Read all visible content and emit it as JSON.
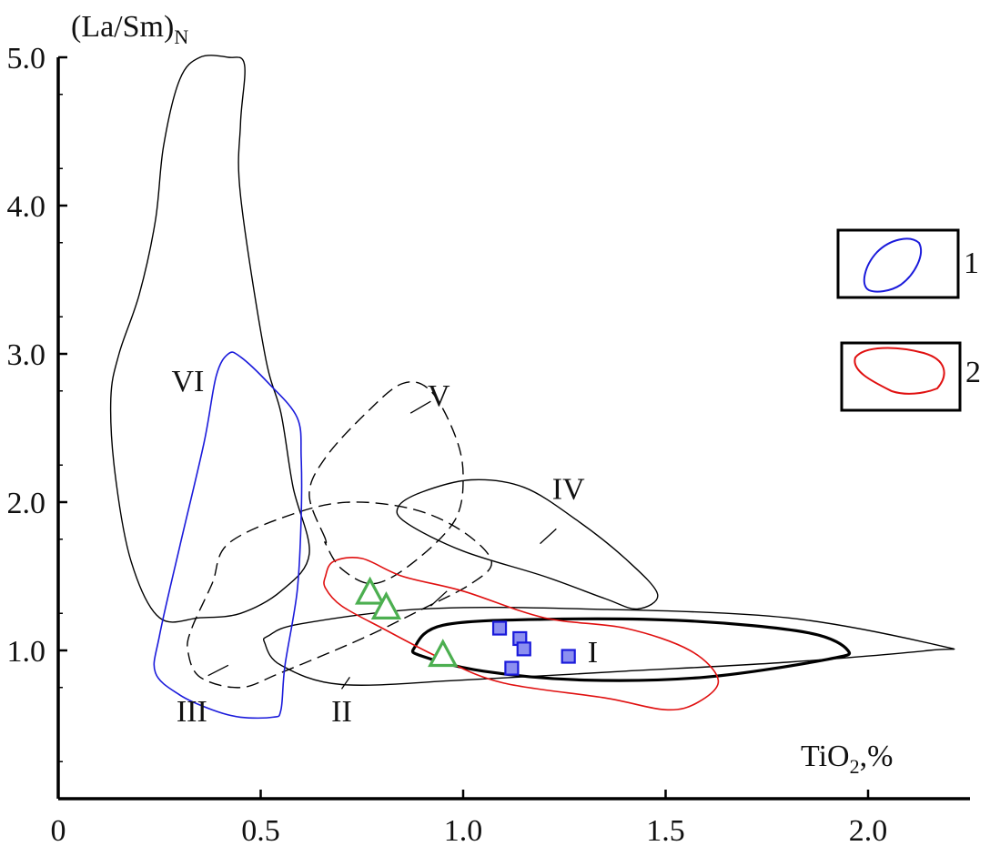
{
  "chart_data": {
    "type": "scatter",
    "title": "",
    "xlabel": "TiO",
    "xlabel_sub": "2",
    "xlabel_unit": ",%",
    "ylabel": "(La/Sm)",
    "ylabel_sub": "N",
    "xlim": [
      0,
      2.25
    ],
    "ylim": [
      0,
      5.0
    ],
    "x_ticks": [
      {
        "v": 0,
        "t": "0"
      },
      {
        "v": 0.5,
        "t": "0.5"
      },
      {
        "v": 1.0,
        "t": "1.0"
      },
      {
        "v": 1.5,
        "t": "1.5"
      },
      {
        "v": 2.0,
        "t": "2.0"
      }
    ],
    "y_ticks": [
      {
        "v": 1.0,
        "t": "1.0"
      },
      {
        "v": 2.0,
        "t": "2.0"
      },
      {
        "v": 3.0,
        "t": "3.0"
      },
      {
        "v": 4.0,
        "t": "4.0"
      },
      {
        "v": 5.0,
        "t": "5.0"
      }
    ],
    "grid": false,
    "colors": {
      "axis": "#000000",
      "field_black": "#000000",
      "field_blue": "#1a1adb",
      "field_red": "#e01010",
      "triangle": "#4caf50",
      "square_fill": "#8c8ff0",
      "square_stroke": "#1a1adb"
    },
    "fields": [
      {
        "label": "I",
        "style": "bold",
        "color": "#000000",
        "points": [
          [
            0.88,
            1.02
          ],
          [
            0.95,
            1.17
          ],
          [
            1.2,
            1.21
          ],
          [
            1.55,
            1.2
          ],
          [
            1.85,
            1.12
          ],
          [
            1.95,
            1.0
          ],
          [
            1.9,
            0.94
          ],
          [
            1.6,
            0.82
          ],
          [
            1.3,
            0.8
          ],
          [
            1.05,
            0.86
          ],
          [
            0.9,
            0.96
          ]
        ]
      },
      {
        "label": "II",
        "style": "thin",
        "color": "#000000",
        "points": [
          [
            0.52,
            1.1
          ],
          [
            0.6,
            1.18
          ],
          [
            0.9,
            1.28
          ],
          [
            1.3,
            1.28
          ],
          [
            1.8,
            1.22
          ],
          [
            2.18,
            1.03
          ],
          [
            2.15,
            1.0
          ],
          [
            1.8,
            0.92
          ],
          [
            1.4,
            0.86
          ],
          [
            1.0,
            0.8
          ],
          [
            0.7,
            0.77
          ],
          [
            0.55,
            0.9
          ],
          [
            0.51,
            1.05
          ]
        ]
      },
      {
        "label": "III",
        "style": "dashed",
        "color": "#000000",
        "points": [
          [
            0.33,
            1.15
          ],
          [
            0.38,
            1.45
          ],
          [
            0.42,
            1.72
          ],
          [
            0.58,
            1.92
          ],
          [
            0.72,
            2.0
          ],
          [
            0.88,
            1.95
          ],
          [
            1.0,
            1.8
          ],
          [
            1.07,
            1.6
          ],
          [
            1.02,
            1.45
          ],
          [
            0.9,
            1.28
          ],
          [
            0.75,
            1.08
          ],
          [
            0.55,
            0.85
          ],
          [
            0.45,
            0.75
          ],
          [
            0.35,
            0.82
          ],
          [
            0.32,
            1.0
          ]
        ]
      },
      {
        "label": "IV",
        "style": "thin",
        "color": "#000000",
        "points": [
          [
            0.84,
            1.97
          ],
          [
            0.9,
            2.07
          ],
          [
            1.02,
            2.15
          ],
          [
            1.15,
            2.1
          ],
          [
            1.28,
            1.88
          ],
          [
            1.4,
            1.62
          ],
          [
            1.48,
            1.38
          ],
          [
            1.43,
            1.28
          ],
          [
            1.35,
            1.35
          ],
          [
            1.2,
            1.5
          ],
          [
            1.0,
            1.67
          ],
          [
            0.86,
            1.86
          ]
        ]
      },
      {
        "label": "V",
        "style": "dashed",
        "color": "#000000",
        "points": [
          [
            0.66,
            1.75
          ],
          [
            0.62,
            2.05
          ],
          [
            0.66,
            2.3
          ],
          [
            0.76,
            2.6
          ],
          [
            0.85,
            2.8
          ],
          [
            0.92,
            2.75
          ],
          [
            0.98,
            2.45
          ],
          [
            1.0,
            2.18
          ],
          [
            0.98,
            1.88
          ],
          [
            0.88,
            1.6
          ],
          [
            0.78,
            1.45
          ],
          [
            0.7,
            1.55
          ],
          [
            0.66,
            1.72
          ]
        ]
      },
      {
        "label": "VI",
        "style": "thin",
        "color": "#000000",
        "points": [
          [
            0.35,
            5.0
          ],
          [
            0.42,
            5.0
          ],
          [
            0.46,
            4.95
          ],
          [
            0.45,
            4.55
          ],
          [
            0.45,
            4.07
          ],
          [
            0.51,
            3.0
          ],
          [
            0.55,
            2.6
          ],
          [
            0.58,
            2.1
          ],
          [
            0.62,
            1.65
          ],
          [
            0.55,
            1.4
          ],
          [
            0.45,
            1.25
          ],
          [
            0.35,
            1.22
          ],
          [
            0.25,
            1.22
          ],
          [
            0.18,
            1.6
          ],
          [
            0.14,
            2.2
          ],
          [
            0.13,
            2.7
          ],
          [
            0.15,
            3.0
          ],
          [
            0.2,
            3.4
          ],
          [
            0.24,
            3.9
          ],
          [
            0.26,
            4.4
          ],
          [
            0.3,
            4.85
          ]
        ]
      },
      {
        "label": "",
        "style": "thin",
        "color": "#1a1adb",
        "points": [
          [
            0.42,
            3.0
          ],
          [
            0.45,
            2.98
          ],
          [
            0.52,
            2.8
          ],
          [
            0.59,
            2.57
          ],
          [
            0.6,
            2.3
          ],
          [
            0.6,
            1.9
          ],
          [
            0.59,
            1.4
          ],
          [
            0.56,
            0.9
          ],
          [
            0.55,
            0.6
          ],
          [
            0.53,
            0.55
          ],
          [
            0.45,
            0.55
          ],
          [
            0.38,
            0.6
          ],
          [
            0.3,
            0.7
          ],
          [
            0.24,
            0.85
          ],
          [
            0.25,
            1.1
          ],
          [
            0.3,
            1.7
          ],
          [
            0.36,
            2.4
          ],
          [
            0.39,
            2.85
          ]
        ]
      },
      {
        "label": "",
        "style": "thin",
        "color": "#e01010",
        "points": [
          [
            0.66,
            1.5
          ],
          [
            0.68,
            1.6
          ],
          [
            0.75,
            1.62
          ],
          [
            0.85,
            1.5
          ],
          [
            1.0,
            1.4
          ],
          [
            1.2,
            1.22
          ],
          [
            1.4,
            1.15
          ],
          [
            1.56,
            1.0
          ],
          [
            1.63,
            0.8
          ],
          [
            1.58,
            0.65
          ],
          [
            1.5,
            0.6
          ],
          [
            1.35,
            0.68
          ],
          [
            1.1,
            0.78
          ],
          [
            0.95,
            0.94
          ],
          [
            0.8,
            1.15
          ],
          [
            0.7,
            1.3
          ],
          [
            0.66,
            1.42
          ]
        ]
      }
    ],
    "field_labels": [
      {
        "t": "I",
        "x": 1.32,
        "y": 0.92
      },
      {
        "t": "II",
        "x": 0.7,
        "y": 0.52
      },
      {
        "t": "III",
        "x": 0.33,
        "y": 0.52
      },
      {
        "t": "IV",
        "x": 1.26,
        "y": 2.02
      },
      {
        "t": "V",
        "x": 0.94,
        "y": 2.65
      },
      {
        "t": "VI",
        "x": 0.32,
        "y": 2.75
      }
    ],
    "leaders": [
      [
        [
          0.92,
          1.3
        ],
        [
          0.96,
          1.4
        ]
      ],
      [
        [
          0.7,
          0.74
        ],
        [
          0.72,
          0.82
        ]
      ],
      [
        [
          0.37,
          0.83
        ],
        [
          0.42,
          0.9
        ]
      ],
      [
        [
          1.19,
          1.72
        ],
        [
          1.23,
          1.82
        ]
      ],
      [
        [
          0.87,
          2.6
        ],
        [
          0.92,
          2.68
        ]
      ]
    ],
    "series": [
      {
        "marker": "triangle",
        "points": [
          [
            0.77,
            1.38
          ],
          [
            0.81,
            1.28
          ],
          [
            0.95,
            0.96
          ]
        ]
      },
      {
        "marker": "square",
        "points": [
          [
            1.09,
            1.15
          ],
          [
            1.14,
            1.08
          ],
          [
            1.15,
            1.01
          ],
          [
            1.12,
            0.88
          ],
          [
            1.26,
            0.96
          ]
        ]
      }
    ],
    "legend": [
      {
        "label": "1",
        "color": "#1a1adb"
      },
      {
        "label": "2",
        "color": "#e01010"
      }
    ]
  }
}
